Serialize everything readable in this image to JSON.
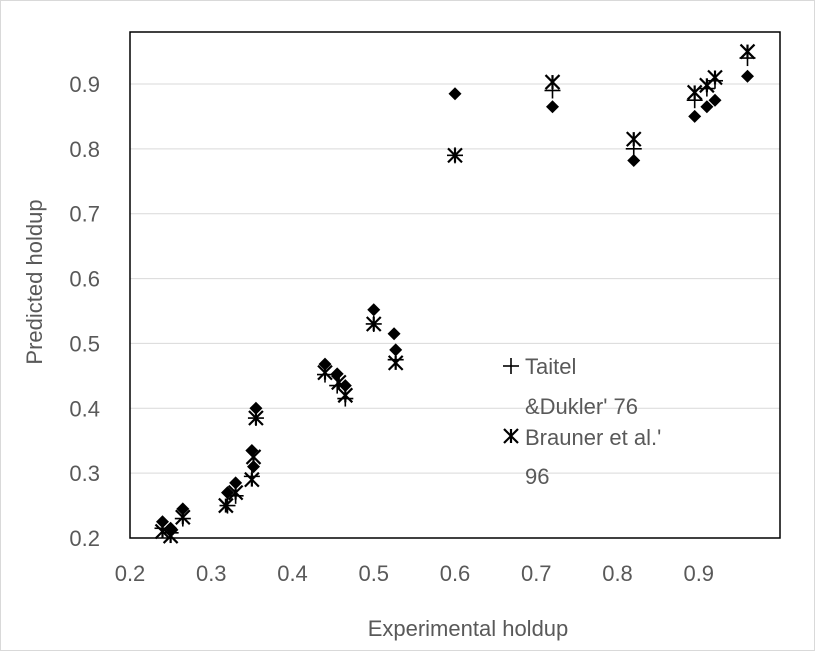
{
  "chart_data": {
    "type": "scatter",
    "xlabel": "Experimental holdup",
    "ylabel": "Predicted holdup",
    "xlim": [
      0.2,
      1.0
    ],
    "ylim": [
      0.2,
      0.9
    ],
    "x_ticks": [
      "0.2",
      "0.3",
      "0.4",
      "0.5",
      "0.6",
      "0.7",
      "0.8",
      "0.9"
    ],
    "y_ticks": [
      "0.2",
      "0.3",
      "0.4",
      "0.5",
      "0.6",
      "0.7",
      "0.8",
      "0.9"
    ],
    "grid": "horizontal",
    "legend_position": "right-middle",
    "series": [
      {
        "marker": "diamond",
        "color": "#000000",
        "points": [
          [
            0.24,
            0.225
          ],
          [
            0.25,
            0.215
          ],
          [
            0.265,
            0.245
          ],
          [
            0.32,
            0.27
          ],
          [
            0.33,
            0.285
          ],
          [
            0.35,
            0.335
          ],
          [
            0.352,
            0.31
          ],
          [
            0.355,
            0.4
          ],
          [
            0.44,
            0.468
          ],
          [
            0.455,
            0.453
          ],
          [
            0.465,
            0.435
          ],
          [
            0.5,
            0.552
          ],
          [
            0.525,
            0.515
          ],
          [
            0.527,
            0.49
          ],
          [
            0.6,
            0.885
          ],
          [
            0.72,
            0.865
          ],
          [
            0.82,
            0.782
          ],
          [
            0.895,
            0.85
          ],
          [
            0.91,
            0.865
          ],
          [
            0.92,
            0.875
          ],
          [
            0.96,
            0.912
          ]
        ]
      },
      {
        "name": "Taitel &Dukler' 76",
        "marker": "plus",
        "color": "#000000",
        "points": [
          [
            0.24,
            0.215
          ],
          [
            0.25,
            0.208
          ],
          [
            0.265,
            0.23
          ],
          [
            0.32,
            0.25
          ],
          [
            0.33,
            0.265
          ],
          [
            0.35,
            0.295
          ],
          [
            0.355,
            0.385
          ],
          [
            0.44,
            0.452
          ],
          [
            0.455,
            0.435
          ],
          [
            0.465,
            0.415
          ],
          [
            0.5,
            0.53
          ],
          [
            0.527,
            0.475
          ],
          [
            0.6,
            0.79
          ],
          [
            0.72,
            0.89
          ],
          [
            0.82,
            0.8
          ],
          [
            0.895,
            0.875
          ],
          [
            0.91,
            0.893
          ],
          [
            0.92,
            0.905
          ],
          [
            0.96,
            0.94
          ]
        ]
      },
      {
        "name": "Brauner et al.' 96",
        "marker": "asterisk",
        "color": "#000000",
        "points": [
          [
            0.24,
            0.21
          ],
          [
            0.25,
            0.203
          ],
          [
            0.265,
            0.232
          ],
          [
            0.318,
            0.25
          ],
          [
            0.33,
            0.27
          ],
          [
            0.35,
            0.29
          ],
          [
            0.352,
            0.325
          ],
          [
            0.355,
            0.385
          ],
          [
            0.44,
            0.455
          ],
          [
            0.457,
            0.44
          ],
          [
            0.465,
            0.42
          ],
          [
            0.5,
            0.53
          ],
          [
            0.527,
            0.47
          ],
          [
            0.6,
            0.79
          ],
          [
            0.72,
            0.903
          ],
          [
            0.82,
            0.815
          ],
          [
            0.895,
            0.887
          ],
          [
            0.91,
            0.898
          ],
          [
            0.92,
            0.91
          ],
          [
            0.96,
            0.95
          ]
        ]
      }
    ],
    "legend": {
      "line1_a": "Taitel",
      "line1_b": "&Dukler' 76",
      "line2_a": "Brauner et al.'",
      "line2_b": "96"
    }
  }
}
